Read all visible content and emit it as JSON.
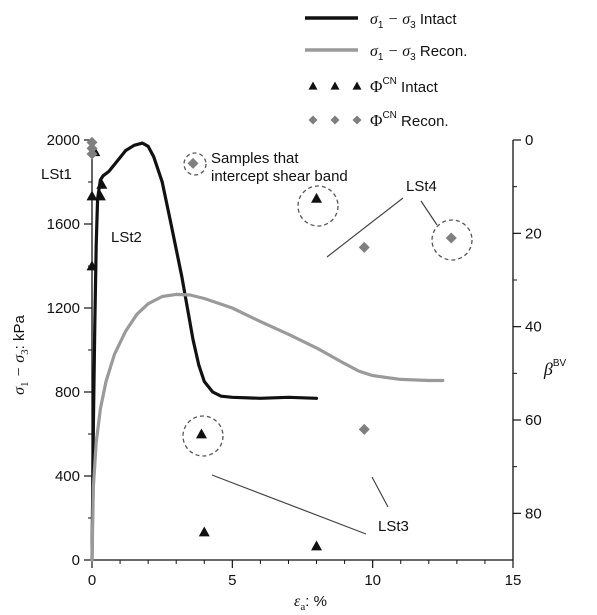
{
  "chart_data": {
    "type": "line",
    "xlabel": "εa: %",
    "xlabel_main": "ε",
    "xlabel_sub": "a",
    "xlabel_rest": ": %",
    "ylabel": "σ1 − σ3: kPa",
    "ylabel_left_parts": [
      "σ",
      "1",
      " − σ",
      "3",
      ": kPa"
    ],
    "y2label": "βBV",
    "y2label_main": "β",
    "y2label_sup": "BV",
    "xlim": [
      0,
      15
    ],
    "ylim": [
      0,
      2000
    ],
    "y2lim": [
      0,
      90
    ],
    "y2_inverted": true,
    "xticks": [
      "0",
      "5",
      "10",
      "15"
    ],
    "yticks": [
      "0",
      "400",
      "800",
      "1200",
      "1600",
      "2000"
    ],
    "y2ticks": [
      "0",
      "20",
      "40",
      "60",
      "80"
    ],
    "grid": false,
    "legend_position": "top-right",
    "legend": [
      {
        "label_parts": [
          "σ",
          "1",
          " − σ",
          "3",
          " Intact"
        ],
        "marker": "line",
        "color": "#111111"
      },
      {
        "label_parts": [
          "σ",
          "1",
          " − σ",
          "3",
          " Recon."
        ],
        "marker": "line",
        "color": "#9a9a9a"
      },
      {
        "label_parts": [
          "Φ",
          "CN",
          " Intact"
        ],
        "marker": "triangle",
        "color": "#111111"
      },
      {
        "label_parts": [
          "Φ",
          "CN",
          " Recon."
        ],
        "marker": "diamond",
        "color": "#7f7f7f"
      }
    ],
    "series": [
      {
        "name": "σ1 − σ3 Intact",
        "axis": "left",
        "color": "#111111",
        "x": [
          0,
          0.05,
          0.1,
          0.15,
          0.2,
          0.3,
          0.4,
          0.6,
          0.9,
          1.2,
          1.5,
          1.8,
          2.0,
          2.2,
          2.5,
          2.8,
          3.0,
          3.2,
          3.4,
          3.6,
          3.8,
          4.0,
          4.3,
          4.6,
          5.0,
          6.0,
          7.0,
          8.0
        ],
        "y": [
          0,
          650,
          1120,
          1500,
          1720,
          1810,
          1830,
          1850,
          1900,
          1950,
          1975,
          1985,
          1970,
          1920,
          1800,
          1610,
          1480,
          1350,
          1200,
          1050,
          930,
          850,
          800,
          780,
          775,
          770,
          775,
          770
        ]
      },
      {
        "name": "σ1 − σ3 Recon.",
        "axis": "left",
        "color": "#9a9a9a",
        "x": [
          0,
          0.05,
          0.15,
          0.3,
          0.5,
          0.8,
          1.2,
          1.6,
          2.0,
          2.5,
          3.0,
          3.5,
          4.0,
          5.0,
          6.0,
          7.0,
          8.0,
          9.0,
          9.5,
          10.0,
          11.0,
          12.0,
          12.5
        ],
        "y": [
          0,
          350,
          560,
          720,
          850,
          980,
          1090,
          1170,
          1220,
          1255,
          1265,
          1262,
          1245,
          1200,
          1135,
          1075,
          1010,
          935,
          900,
          878,
          860,
          855,
          855
        ]
      },
      {
        "name": "ΦCN Intact",
        "axis": "right",
        "marker": "triangle",
        "color": "#111111",
        "x": [
          0.0,
          0.0,
          0.1,
          0.3,
          0.35,
          3.9,
          4.0,
          8.0,
          8.0
        ],
        "y": [
          27,
          12,
          2.5,
          12,
          9.5,
          63,
          84,
          12.5,
          87
        ]
      },
      {
        "name": "ΦCN Recon.",
        "axis": "right",
        "marker": "diamond",
        "color": "#7f7f7f",
        "x": [
          0.0,
          0.0,
          0.0,
          3.6,
          9.7,
          9.7,
          12.8
        ],
        "y": [
          0.5,
          1.8,
          3.0,
          5.0,
          23.0,
          62.0,
          21.0
        ]
      }
    ],
    "annotations": [
      {
        "text": "LSt1"
      },
      {
        "text": "LSt2"
      },
      {
        "text": "LSt3"
      },
      {
        "text": "LSt4"
      },
      {
        "text": "Samples that"
      },
      {
        "text": "intercept shear band"
      }
    ]
  }
}
